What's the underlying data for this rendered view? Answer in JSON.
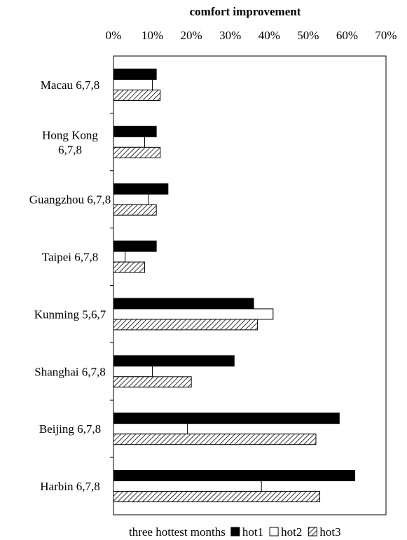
{
  "chart_data": {
    "type": "bar",
    "orientation": "horizontal",
    "title": "comfort improvement",
    "xlabel": "",
    "ylabel": "",
    "xlim": [
      0,
      70
    ],
    "xticks": [
      "0%",
      "10%",
      "20%",
      "30%",
      "40%",
      "50%",
      "60%",
      "70%"
    ],
    "categories": [
      "Macau 6,7,8",
      "Hong Kong 6,7,8",
      "Guangzhou 6,7,8",
      "Taipei 6,7,8",
      "Kunming 5,6,7",
      "Shanghai 6,7,8",
      "Beijing 6,7,8",
      "Harbin 6,7,8"
    ],
    "category_lines": [
      [
        "Macau 6,7,8"
      ],
      [
        "Hong Kong",
        "6,7,8"
      ],
      [
        "Guangzhou 6,7,8"
      ],
      [
        "Taipei 6,7,8"
      ],
      [
        "Kunming 5,6,7"
      ],
      [
        "Shanghai 6,7,8"
      ],
      [
        "Beijing 6,7,8"
      ],
      [
        "Harbin 6,7,8"
      ]
    ],
    "series": [
      {
        "name": "hot1",
        "fill": "solid",
        "color": "#000000",
        "values": [
          11,
          11,
          14,
          11,
          36,
          31,
          58,
          62
        ]
      },
      {
        "name": "hot2",
        "fill": "empty",
        "color": "#ffffff",
        "values": [
          10,
          8,
          9,
          3,
          41,
          10,
          19,
          38
        ]
      },
      {
        "name": "hot3",
        "fill": "hatched",
        "color": "#000000",
        "values": [
          12,
          12,
          11,
          8,
          37,
          20,
          52,
          53
        ]
      }
    ],
    "legend": {
      "placement": "bottom",
      "prefix": "three hottest months"
    },
    "grid": false
  }
}
